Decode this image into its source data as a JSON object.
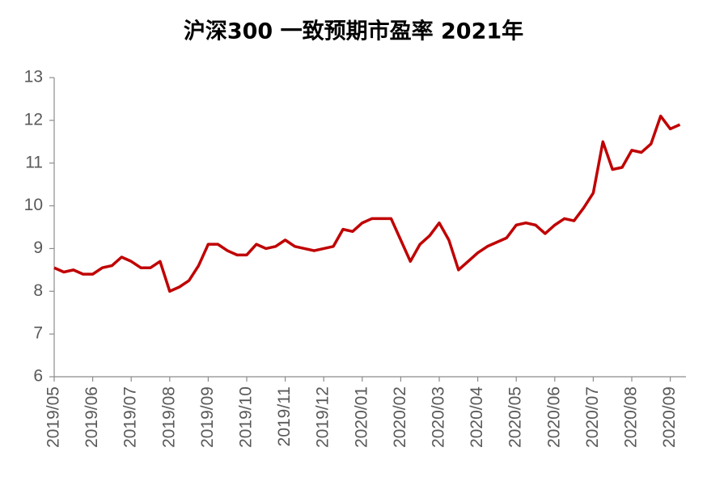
{
  "chart_data": {
    "type": "line",
    "title": "沪深300 一致预期市盈率 2021年",
    "categories": [
      "2019/05",
      null,
      null,
      null,
      "2019/06",
      null,
      null,
      null,
      "2019/07",
      null,
      null,
      null,
      "2019/08",
      null,
      null,
      null,
      "2019/09",
      null,
      null,
      null,
      "2019/10",
      null,
      null,
      null,
      "2019/11",
      null,
      null,
      null,
      "2019/12",
      null,
      null,
      null,
      "2020/01",
      null,
      null,
      null,
      "2020/02",
      null,
      null,
      null,
      "2020/03",
      null,
      null,
      null,
      "2020/04",
      null,
      null,
      null,
      "2020/05",
      null,
      null,
      null,
      "2020/06",
      null,
      null,
      null,
      "2020/07",
      null,
      null,
      null,
      "2020/08",
      null,
      null,
      null,
      "2020/09",
      null
    ],
    "series": [
      {
        "name": "沪深300 一致预期市盈率",
        "color": "#c00000",
        "values": [
          8.55,
          8.45,
          8.5,
          8.4,
          8.4,
          8.55,
          8.6,
          8.8,
          8.7,
          8.55,
          8.55,
          8.7,
          8.0,
          8.1,
          8.25,
          8.6,
          9.1,
          9.1,
          8.95,
          8.85,
          8.85,
          9.1,
          9.0,
          9.05,
          9.2,
          9.05,
          9.0,
          8.95,
          9.0,
          9.05,
          9.45,
          9.4,
          9.6,
          9.7,
          9.7,
          9.7,
          9.2,
          8.7,
          9.1,
          9.3,
          9.6,
          9.2,
          8.5,
          8.7,
          8.9,
          9.05,
          9.15,
          9.25,
          9.55,
          9.6,
          9.55,
          9.35,
          9.55,
          9.7,
          9.65,
          9.95,
          10.3,
          11.5,
          10.85,
          10.9,
          11.3,
          11.25,
          11.45,
          12.1,
          11.8,
          11.9
        ]
      }
    ],
    "ylim": [
      6,
      13
    ],
    "yticks": [
      6,
      7,
      8,
      9,
      10,
      11,
      12,
      13
    ]
  }
}
